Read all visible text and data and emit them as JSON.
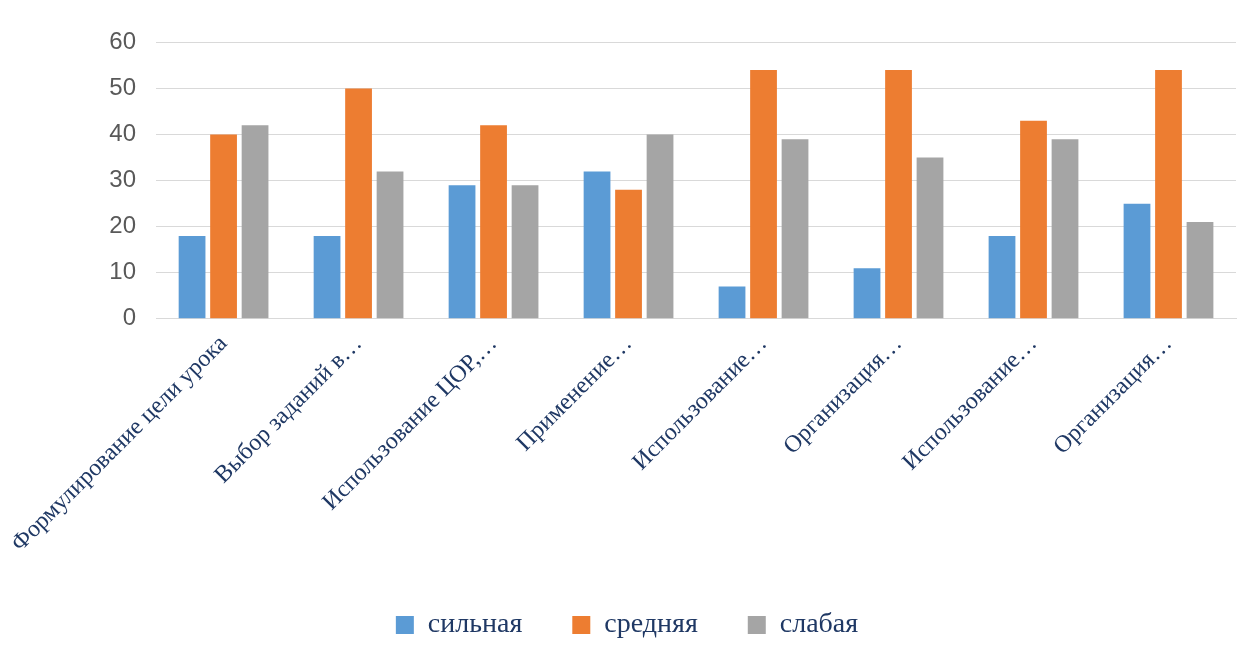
{
  "chart_data": {
    "type": "bar",
    "categories": [
      "Формулирование цели урока",
      "Выбор заданий в…",
      "Использование ЦОР,…",
      "Применение…",
      "Использование…",
      "Организация…",
      "Использование…",
      "Организация…"
    ],
    "series": [
      {
        "name": "сильная",
        "color": "#5b9bd5",
        "values": [
          18,
          18,
          29,
          32,
          7,
          11,
          18,
          25
        ]
      },
      {
        "name": "средняя",
        "color": "#ed7d31",
        "values": [
          40,
          50,
          42,
          28,
          54,
          54,
          43,
          54
        ]
      },
      {
        "name": "слабая",
        "color": "#a5a5a5",
        "values": [
          42,
          32,
          29,
          40,
          39,
          35,
          39,
          21
        ]
      }
    ],
    "ylim": [
      0,
      60
    ],
    "yticks": [
      0,
      10,
      20,
      30,
      40,
      50,
      60
    ],
    "grid": "y",
    "legend": "bottom"
  }
}
